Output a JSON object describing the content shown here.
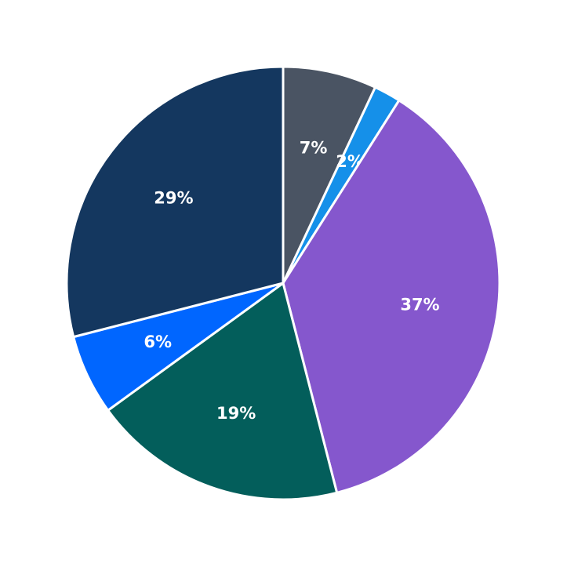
{
  "chart_data": {
    "type": "pie",
    "title": "",
    "start_angle_deg": 90,
    "direction": "clockwise",
    "slices": [
      {
        "label": "7%",
        "value": 7,
        "color": "#4a5463"
      },
      {
        "label": "2%",
        "value": 2,
        "color": "#1590e9"
      },
      {
        "label": "37%",
        "value": 37,
        "color": "#8557cd"
      },
      {
        "label": "19%",
        "value": 19,
        "color": "#035e5b"
      },
      {
        "label": "6%",
        "value": 6,
        "color": "#0066ff"
      },
      {
        "label": "29%",
        "value": 29,
        "color": "#14375f"
      }
    ],
    "legend": null
  }
}
